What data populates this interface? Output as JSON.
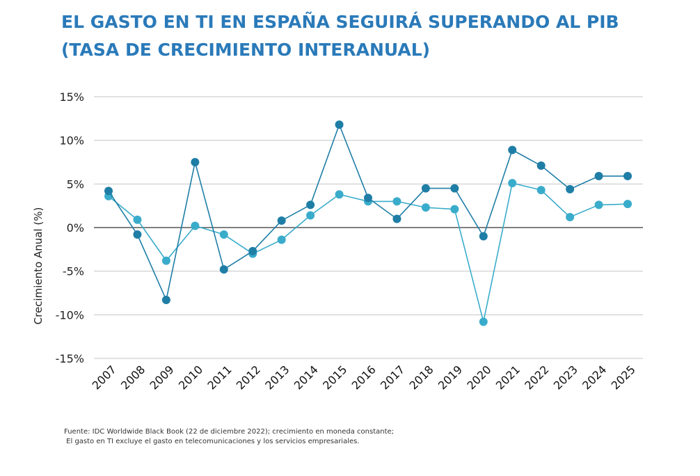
{
  "header": {
    "title_line1": "EL GASTO EN TI EN ESPAÑA SEGUIRÁ SUPERANDO AL PIB",
    "title_line2": "(TASA DE CRECIMIENTO INTERANUAL)"
  },
  "footer": {
    "source_line1": "Fuente: IDC Worldwide Black Book (22 de diciembre 2022); crecimiento en moneda constante;",
    "source_line2": " El gasto en TI excluye el gasto en telecomunicaciones y los servicios empresariales."
  },
  "chart_data": {
    "type": "line",
    "title": "EL GASTO EN TI EN ESPAÑA SEGUIRÁ SUPERANDO AL PIB (TASA DE CRECIMIENTO INTERANUAL)",
    "xlabel": "",
    "ylabel": "Crecimiento Anual (%)",
    "ylim": [
      -15,
      15
    ],
    "yticks": [
      15,
      10,
      5,
      0,
      -5,
      -10,
      -15
    ],
    "ytick_labels": [
      "15%",
      "10%",
      "5%",
      "0%",
      "-5%",
      "-10%",
      "-15%"
    ],
    "grid": true,
    "legend": "none",
    "categories": [
      "2007",
      "2008",
      "2009",
      "2010",
      "2011",
      "2012",
      "2013",
      "2014",
      "2015",
      "2016",
      "2017",
      "2018",
      "2019",
      "2020",
      "2021",
      "2022",
      "2023",
      "2024",
      "2025"
    ],
    "series": [
      {
        "color": "#1f7ea6",
        "values": [
          4.2,
          -0.8,
          -8.3,
          7.5,
          -4.8,
          -2.7,
          0.8,
          2.6,
          11.8,
          3.4,
          1.0,
          4.5,
          4.5,
          -1.0,
          8.9,
          7.1,
          4.4,
          5.9,
          5.9
        ]
      },
      {
        "color": "#3aaccb",
        "values": [
          3.6,
          0.9,
          -3.8,
          0.2,
          -0.8,
          -3.0,
          -1.4,
          1.4,
          3.8,
          3.0,
          3.0,
          2.3,
          2.1,
          -10.8,
          5.1,
          4.3,
          1.2,
          2.6,
          2.7
        ]
      }
    ]
  }
}
